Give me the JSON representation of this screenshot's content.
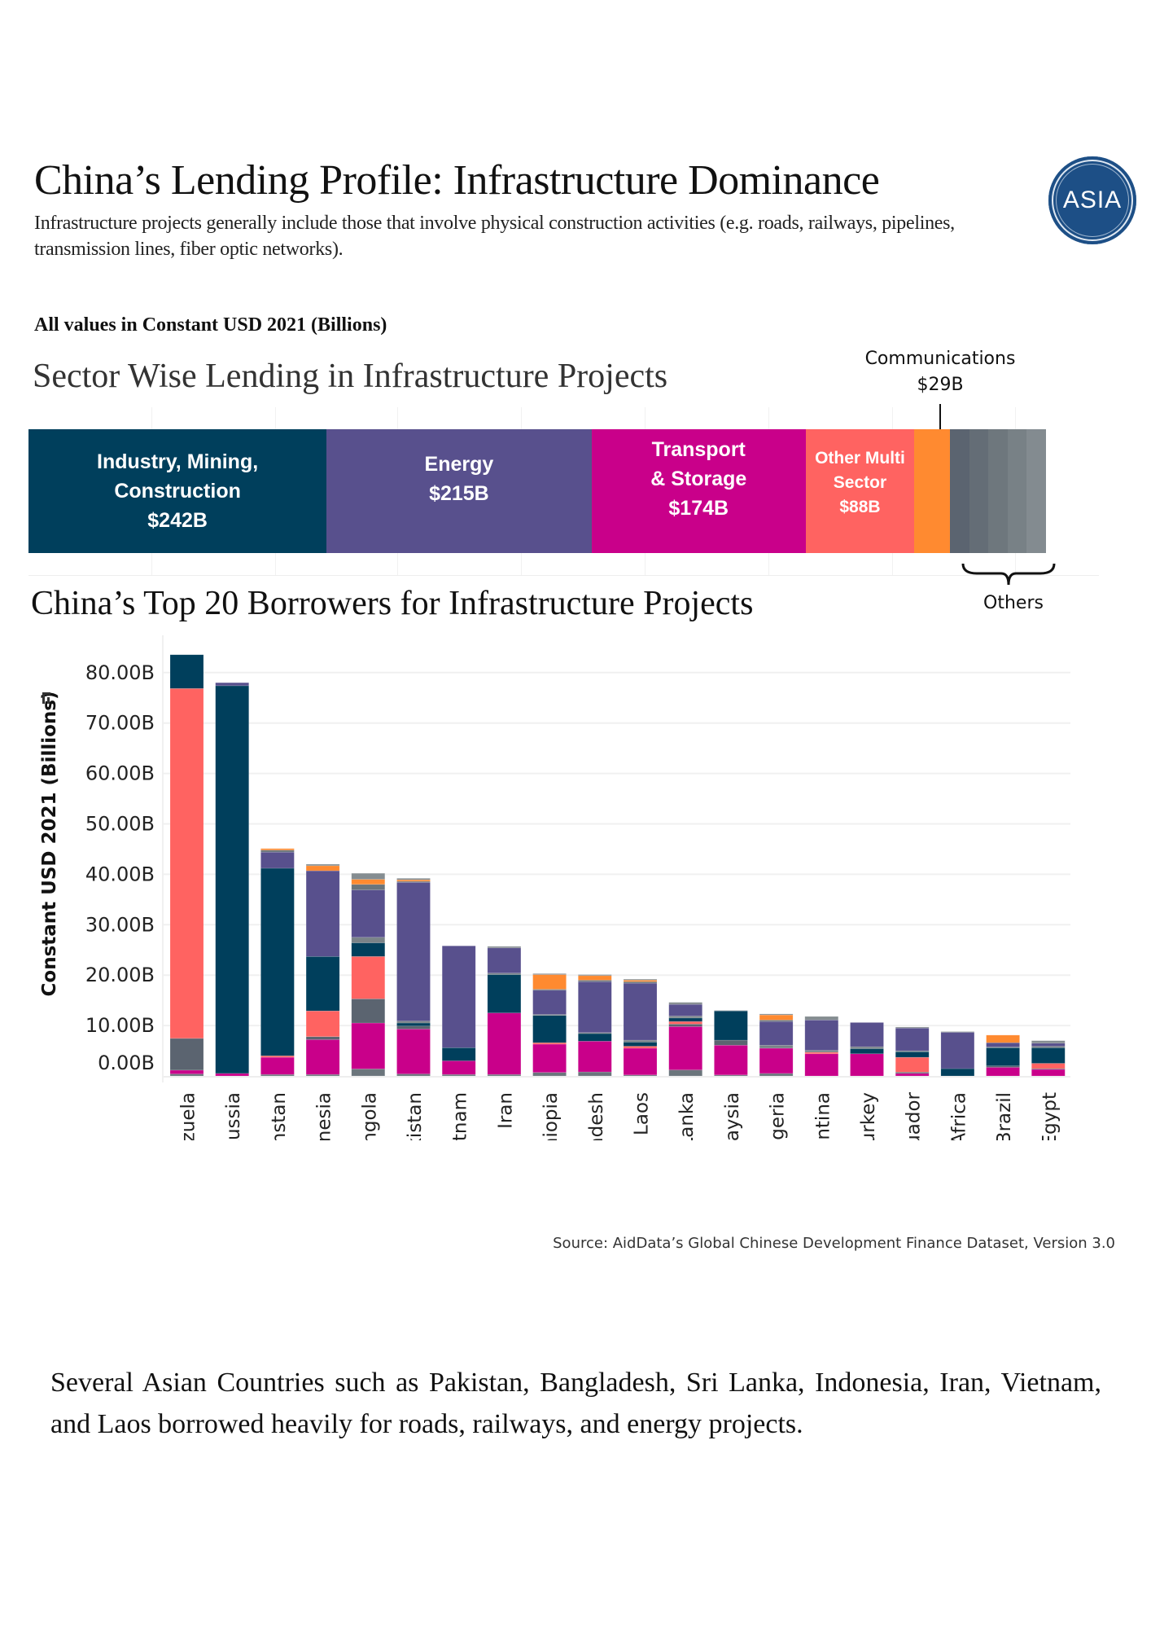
{
  "header": {
    "title": "China’s Lending Profile: Infrastructure Dominance",
    "subtitle": "Infrastructure projects generally include those that involve physical construction activities (e.g. roads, railways, pipelines, transmission lines, fiber optic networks).",
    "logo_text": "ASIA",
    "units_note": "All values in Constant USD 2021 (Billions)"
  },
  "sector_section": {
    "title": "Sector Wise Lending in Infrastructure Projects",
    "segments": [
      {
        "label_lines": [
          "Industry, Mining,",
          "Construction",
          "$242B"
        ],
        "value": 242,
        "color": "#003f5c"
      },
      {
        "label_lines": [
          "Energy",
          "$215B"
        ],
        "value": 215,
        "color": "#58508d"
      },
      {
        "label_lines": [
          "Transport",
          "& Storage",
          "$174B"
        ],
        "value": 174,
        "color": "#c9008a"
      },
      {
        "label_lines": [
          "Other Multi",
          "Sector",
          "$88B"
        ],
        "value": 88,
        "color": "#ff6361"
      },
      {
        "label_lines": [],
        "value": 29,
        "color": "#ff8a30"
      },
      {
        "label_lines": [],
        "value": 78,
        "color": "#6b757c"
      }
    ],
    "callout_communications": {
      "name": "Communications",
      "value": "$29B"
    },
    "others_label": "Others",
    "others_shades": [
      "#5b6470",
      "#646d76",
      "#6e777d",
      "#788186",
      "#838b90"
    ]
  },
  "top20_section": {
    "title": "China’s Top 20 Borrowers for Infrastructure Projects"
  },
  "chart_data": {
    "type": "bar",
    "stacked": true,
    "ylabel": "Constant USD 2021 (Billions)",
    "ylim": [
      0,
      84
    ],
    "yticks": [
      "0.00B",
      "10.00B",
      "20.00B",
      "30.00B",
      "40.00B",
      "50.00B",
      "60.00B",
      "70.00B",
      "80.00B"
    ],
    "ytick_values": [
      0,
      10,
      20,
      30,
      40,
      50,
      60,
      70,
      80
    ],
    "grid": true,
    "categories": [
      "Venezuela",
      "Russia",
      "Kazakhstan",
      "Indonesia",
      "Angola",
      "Pakistan",
      "Vietnam",
      "Iran",
      "Ethiopia",
      "Bangladesh",
      "Laos",
      "Sri Lanka",
      "Malaysia",
      "Nigeria",
      "Argentina",
      "Turkey",
      "Ecuador",
      "South Africa",
      "Brazil",
      "Egypt"
    ],
    "series": [
      {
        "name": "Others",
        "color": "#6b757c",
        "values": [
          0.4,
          0,
          0.3,
          0.3,
          1.4,
          0.4,
          0.3,
          0.3,
          0.7,
          0.8,
          0.2,
          1.2,
          0.2,
          0.5,
          0,
          0,
          0,
          0,
          0,
          0
        ]
      },
      {
        "name": "Transport & Storage",
        "color": "#c9008a",
        "values": [
          0.75,
          0.5,
          3.4,
          6.9,
          9.1,
          8.9,
          2.7,
          12.2,
          5.6,
          6.1,
          5.3,
          8.6,
          5.9,
          5.0,
          4.4,
          4.4,
          0.5,
          0,
          1.7,
          1.3
        ]
      },
      {
        "name": "Others",
        "color": "#5b6470",
        "values": [
          6.3,
          0,
          0,
          0.6,
          4.8,
          0.6,
          0,
          0,
          0,
          0,
          0,
          0.5,
          1.0,
          0,
          0,
          0,
          0.25,
          0,
          0.3,
          0.15
        ]
      },
      {
        "name": "Other Multi Sector",
        "color": "#ff6361",
        "values": [
          69.4,
          0,
          0.3,
          5.1,
          8.4,
          0,
          0,
          0,
          0.3,
          0,
          0.4,
          0.5,
          0,
          0,
          0.3,
          0,
          2.95,
          0,
          0,
          1.05
        ]
      },
      {
        "name": "Industry, Mining, Construction",
        "color": "#003f5c",
        "values": [
          6.7,
          76.9,
          37.2,
          10.8,
          2.7,
          0.6,
          2.6,
          7.6,
          5.4,
          1.5,
          0.8,
          0.7,
          5.8,
          0,
          0,
          1.0,
          1.1,
          1.45,
          3.6,
          3.1
        ]
      },
      {
        "name": "Others",
        "color": "#7a8388",
        "values": [
          0,
          0,
          0,
          0,
          1.1,
          0.4,
          0,
          0.3,
          0.2,
          0.2,
          0.4,
          0.4,
          0,
          0.6,
          0.4,
          0.4,
          0.2,
          0,
          0.15,
          0.3
        ]
      },
      {
        "name": "Energy",
        "color": "#58508d",
        "values": [
          0,
          0.6,
          3.2,
          17.0,
          9.4,
          27.5,
          20.2,
          5.0,
          4.8,
          10.1,
          11.3,
          2.3,
          0,
          4.7,
          6.0,
          4.8,
          4.5,
          7.2,
          0.85,
          0.6
        ]
      },
      {
        "name": "Others",
        "color": "#6b757c",
        "values": [
          0,
          0,
          0.4,
          0,
          1.1,
          0.2,
          0,
          0,
          0.2,
          0.3,
          0.3,
          0,
          0,
          0.3,
          0,
          0,
          0,
          0,
          0,
          0
        ]
      },
      {
        "name": "Communications",
        "color": "#ff8a30",
        "values": [
          0,
          0,
          0.3,
          1.0,
          1.0,
          0.3,
          0,
          0,
          2.9,
          0.9,
          0.3,
          0,
          0,
          1.0,
          0,
          0,
          0,
          0,
          1.5,
          0
        ]
      },
      {
        "name": "Others",
        "color": "#858d91",
        "values": [
          0,
          0,
          0,
          0.3,
          1.2,
          0.3,
          0,
          0.3,
          0.2,
          0.2,
          0.2,
          0.4,
          0.1,
          0.2,
          0.7,
          0,
          0.2,
          0.15,
          0,
          0.5
        ]
      }
    ]
  },
  "source": "Source: AidData’s Global Chinese Development Finance Dataset, Version 3.0",
  "paragraph": "Several Asian Countries such as Pakistan, Bangladesh, Sri Lanka, Indonesia, Iran, Vietnam, and Laos borrowed heavily for roads, railways, and energy projects."
}
